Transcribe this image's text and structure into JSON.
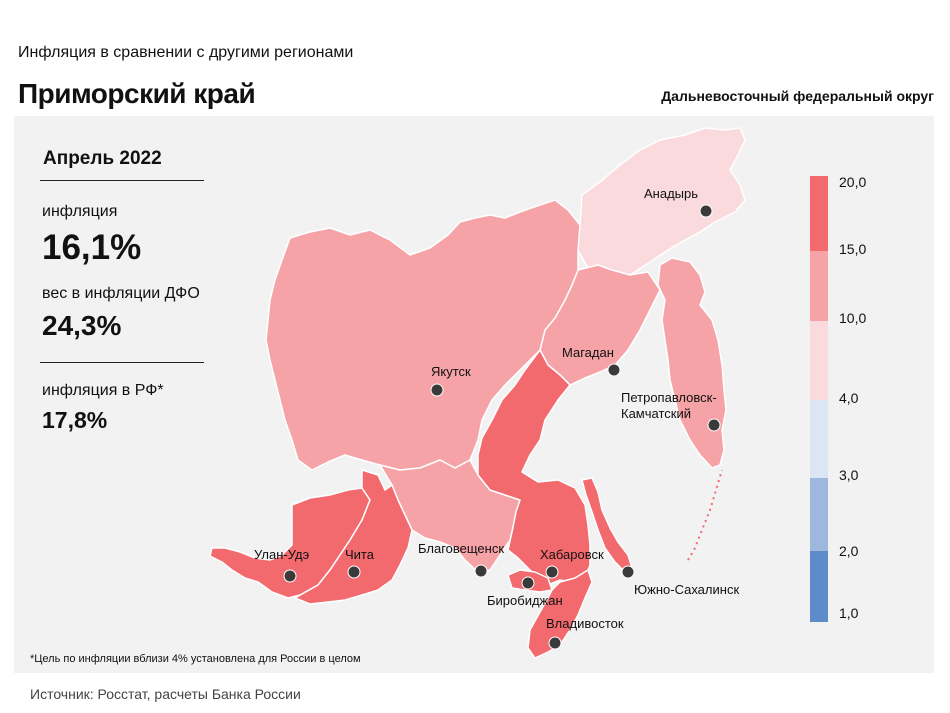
{
  "header": {
    "subtitle": "Инфляция в сравнении с другими регионами",
    "title": "Приморский край",
    "district": "Дальневосточный федеральный округ"
  },
  "stats": {
    "period": "Апрель 2022",
    "inflation_label": "инфляция",
    "inflation_value": "16,1%",
    "weight_label": "вес в инфляции ДФО",
    "weight_value": "24,3%",
    "rf_label": "инфляция в РФ*",
    "rf_value": "17,8%"
  },
  "footnote": "*Цель по инфляции вблизи 4% установлена для России в целом",
  "source": "Источник: Росстат, расчеты Банка России",
  "colors": {
    "band_15_20": "#f26a6e",
    "band_10_15": "#f5a3a6",
    "band_4_10": "#fadadd",
    "band_3_4": "#dce5f3",
    "band_2_3": "#9db8dc",
    "band_1_2": "#5d8cc8"
  },
  "legend": {
    "ticks": [
      "20,0",
      "15,0",
      "10,0",
      "4,0",
      "3,0",
      "2,0",
      "1,0"
    ]
  },
  "cities": [
    {
      "name": "Анадырь"
    },
    {
      "name": "Магадан"
    },
    {
      "name": "Якутск"
    },
    {
      "name": "Петропавловск-"
    },
    {
      "name": "Камчатский"
    },
    {
      "name": "Улан-Удэ"
    },
    {
      "name": "Чита"
    },
    {
      "name": "Благовещенск"
    },
    {
      "name": "Хабаровск"
    },
    {
      "name": "Биробиджан"
    },
    {
      "name": "Южно-Сахалинск"
    },
    {
      "name": "Владивосток"
    }
  ]
}
